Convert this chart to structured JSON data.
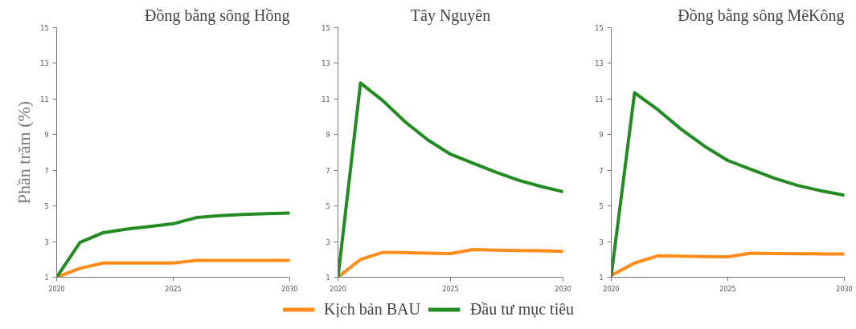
{
  "chart_data": [
    {
      "type": "line",
      "title": "Đồng bằng sông Hồng",
      "ylabel": "Phần trăm (%)",
      "x": [
        2020,
        2021,
        2022,
        2023,
        2024,
        2025,
        2026,
        2027,
        2028,
        2029,
        2030
      ],
      "xlim": [
        2020,
        2030
      ],
      "xticks": [
        2020,
        2025,
        2030
      ],
      "ylim": [
        1,
        15
      ],
      "yticks": [
        1,
        3,
        5,
        7,
        9,
        11,
        13,
        15
      ],
      "series": [
        {
          "color": "#ff8c1a",
          "values": [
            1,
            1.5,
            1.8,
            1.8,
            1.8,
            1.8,
            1.95,
            1.95,
            1.95,
            1.95,
            1.95
          ]
        },
        {
          "color": "#228b22",
          "values": [
            1,
            2.95,
            3.5,
            3.7,
            3.85,
            4.0,
            4.35,
            4.45,
            4.52,
            4.57,
            4.6
          ]
        }
      ]
    },
    {
      "type": "line",
      "title": "Tây Nguyên",
      "x": [
        2020,
        2021,
        2022,
        2023,
        2024,
        2025,
        2026,
        2027,
        2028,
        2029,
        2030
      ],
      "xlim": [
        2020,
        2030
      ],
      "xticks": [
        2020,
        2025,
        2030
      ],
      "ylim": [
        1,
        15
      ],
      "yticks": [
        1,
        3,
        5,
        7,
        9,
        11,
        13,
        15
      ],
      "legend": "bottom",
      "series": [
        {
          "name": "Kịch bản BAU",
          "color": "#ff8c1a",
          "values": [
            1,
            2.0,
            2.4,
            2.38,
            2.35,
            2.33,
            2.55,
            2.52,
            2.5,
            2.48,
            2.45
          ]
        },
        {
          "name": "Đầu tư mục tiêu",
          "color": "#228b22",
          "values": [
            1,
            11.9,
            10.9,
            9.7,
            8.7,
            7.9,
            7.4,
            6.9,
            6.45,
            6.1,
            5.8
          ]
        }
      ]
    },
    {
      "type": "line",
      "title": "Đồng bằng sông MêKông",
      "x": [
        2020,
        2021,
        2022,
        2023,
        2024,
        2025,
        2026,
        2027,
        2028,
        2029,
        2030
      ],
      "xlim": [
        2020,
        2030
      ],
      "xticks": [
        2020,
        2025,
        2030
      ],
      "ylim": [
        1,
        15
      ],
      "yticks": [
        1,
        3,
        5,
        7,
        9,
        11,
        13,
        15
      ],
      "series": [
        {
          "color": "#ff8c1a",
          "values": [
            1.1,
            1.8,
            2.2,
            2.18,
            2.16,
            2.15,
            2.35,
            2.33,
            2.32,
            2.31,
            2.3
          ]
        },
        {
          "color": "#228b22",
          "values": [
            1.1,
            11.35,
            10.4,
            9.3,
            8.35,
            7.55,
            7.05,
            6.55,
            6.15,
            5.85,
            5.6
          ]
        }
      ]
    }
  ]
}
